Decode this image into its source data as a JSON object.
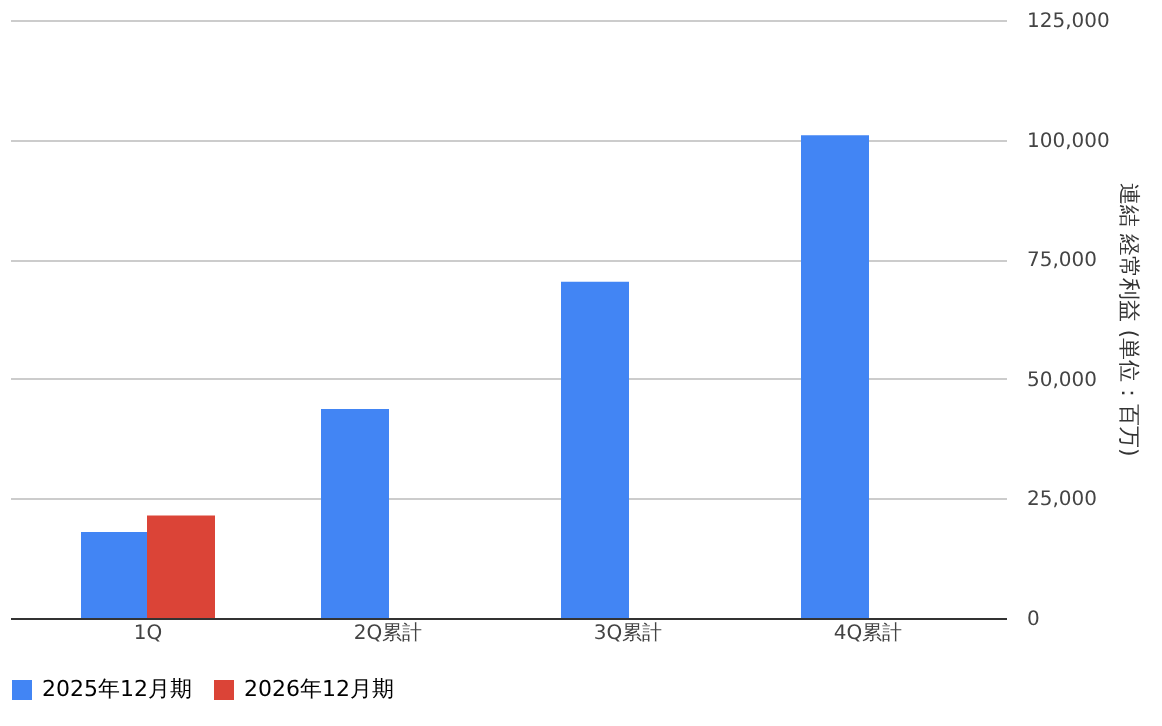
{
  "chart_data": {
    "type": "bar",
    "categories": [
      "1Q",
      "2Q累計",
      "3Q累計",
      "4Q累計"
    ],
    "series": [
      {
        "name": "2025年12月期",
        "color": "#4285f4",
        "values": [
          18000,
          43700,
          70300,
          100900
        ]
      },
      {
        "name": "2026年12月期",
        "color": "#db4437",
        "values": [
          21400,
          null,
          null,
          null
        ]
      }
    ],
    "ylabel": "連結 経常利益 (単位：百万)",
    "ylim": [
      0,
      125000
    ],
    "yticks": [
      0,
      {
        "value": 25000,
        "label": "25,000"
      },
      {
        "value": 50000,
        "label": "50,000"
      },
      {
        "value": 75000,
        "label": "75,000"
      },
      {
        "value": 100000,
        "label": "100,000"
      },
      {
        "value": 125000,
        "label": "125,000"
      }
    ],
    "grid": "y",
    "legend": "bottom"
  }
}
